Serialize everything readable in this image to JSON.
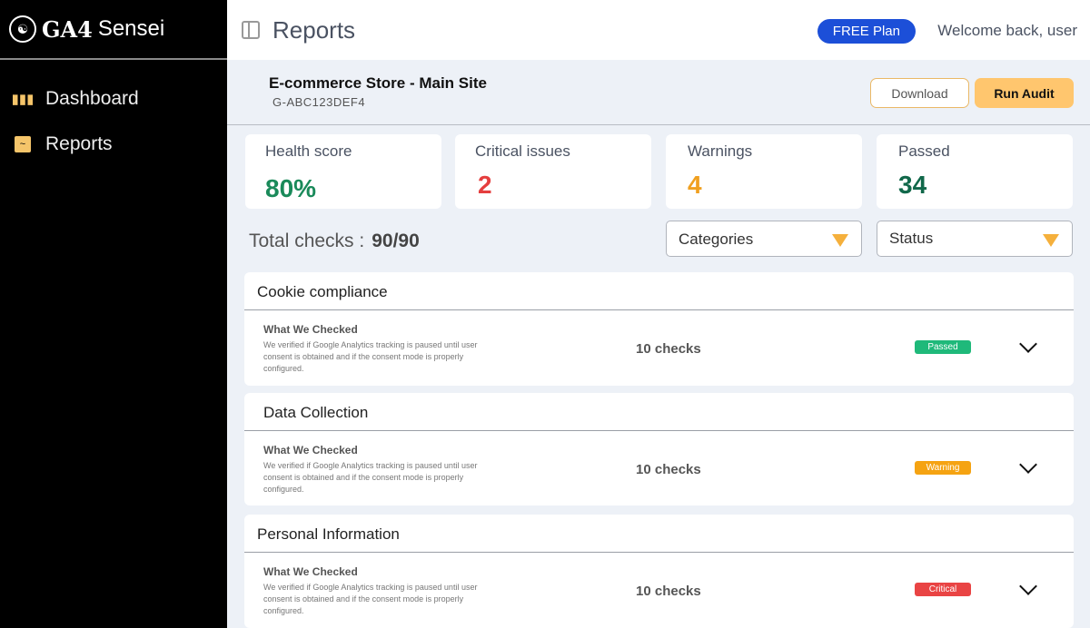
{
  "sidebar": {
    "brand_bold": "GA4",
    "brand_rest": "Sensei",
    "items": [
      {
        "label": "Dashboard",
        "icon": "bar-chart-icon"
      },
      {
        "label": "Reports",
        "icon": "report-file-icon"
      }
    ]
  },
  "header": {
    "title": "Reports",
    "plan": "FREE Plan",
    "welcome": "Welcome back, user"
  },
  "site": {
    "name": "E-commerce Store - Main Site",
    "id": "G-ABC123DEF4",
    "download": "Download",
    "run_audit": "Run Audit"
  },
  "stats": [
    {
      "label": "Health score",
      "value": "80%",
      "color": "#1a8a5a"
    },
    {
      "label": "Critical issues",
      "value": "2",
      "color": "#e53e3e"
    },
    {
      "label": "Warnings",
      "value": "4",
      "color": "#f0a020"
    },
    {
      "label": "Passed",
      "value": "34",
      "color": "#11684a"
    }
  ],
  "total": {
    "label": "Total checks :",
    "value": "90/90"
  },
  "filters": {
    "categories": "Categories",
    "status": "Status"
  },
  "sections": [
    {
      "title": "Cookie compliance",
      "what": "What We Checked",
      "desc": "We verified if Google Analytics tracking is paused until user consent is obtained and if the consent mode is properly configured.",
      "checks": "10 checks",
      "status": "Passed",
      "color": "#1fb97a"
    },
    {
      "title": "Data Collection",
      "what": "What We Checked",
      "desc": "We verified if Google Analytics tracking is paused until user consent is obtained and if the consent mode is properly configured.",
      "checks": "10 checks",
      "status": "Warning",
      "color": "#f5a312"
    },
    {
      "title": "Personal Information",
      "what": "What We Checked",
      "desc": "We verified if Google Analytics tracking is paused until user consent is obtained and if the consent mode is properly configured.",
      "checks": "10 checks",
      "status": "Critical",
      "color": "#e94444"
    }
  ]
}
